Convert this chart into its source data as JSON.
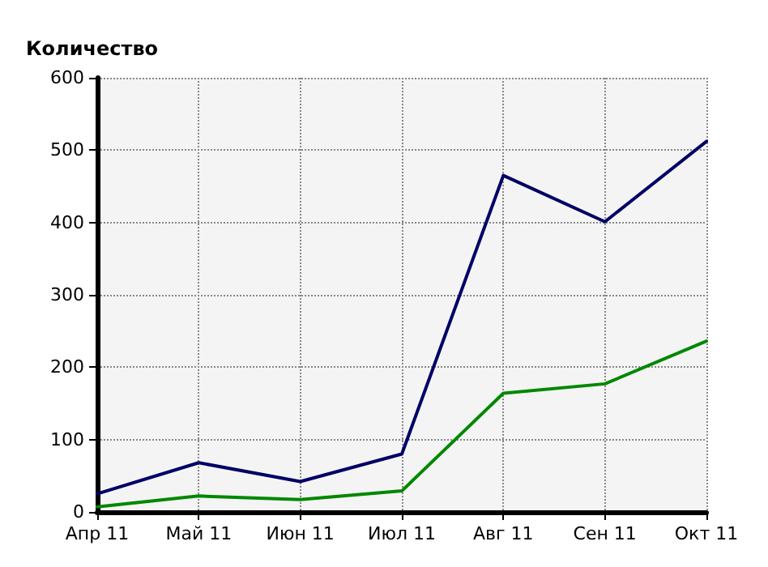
{
  "chart_data": {
    "type": "line",
    "ylabel": "Количество",
    "categories": [
      "Апр 11",
      "Май 11",
      "Июн 11",
      "Июл 11",
      "Авг 11",
      "Сен 11",
      "Окт 11"
    ],
    "series": [
      {
        "color": "#000066",
        "values": [
          25,
          68,
          42,
          80,
          465,
          401,
          512
        ]
      },
      {
        "color": "#008800",
        "values": [
          7,
          22,
          17,
          29,
          164,
          177,
          236
        ]
      }
    ],
    "ylim": [
      0,
      600
    ],
    "yticks": [
      0,
      100,
      200,
      300,
      400,
      500,
      600
    ],
    "grid": true,
    "marker": "none",
    "line_style": "solid"
  }
}
